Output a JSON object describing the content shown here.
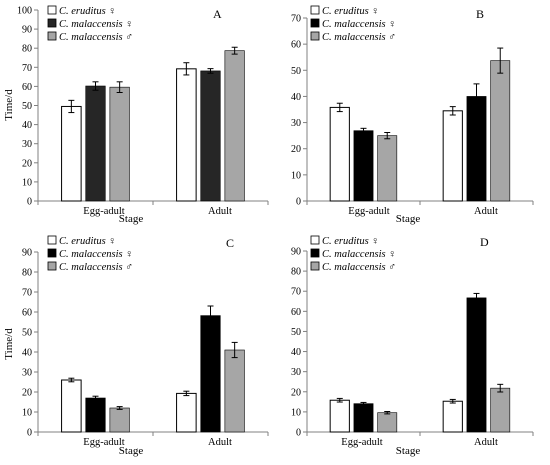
{
  "figure": {
    "panel_label_prefix": "panel",
    "legend_entries": [
      {
        "label": "C. eruditus ♀",
        "marker": "open"
      },
      {
        "label": "C. malaccensis ♀",
        "marker": "black"
      },
      {
        "label": "C. malaccensis ♂",
        "marker": "gray"
      }
    ]
  },
  "colors": {
    "series_fill": [
      "#ffffff",
      "#000000",
      "#a6a6a6"
    ],
    "series_fill_panel_A_malaccensis_female": "#262626",
    "series_stroke": "#000000",
    "axis": "#808080",
    "error_bar": "#000000"
  },
  "chart_data": [
    {
      "type": "bar",
      "panel_label": "A",
      "title": "",
      "xlabel": "Stage",
      "ylabel": "Time/d",
      "categories": [
        "Egg-adult",
        "Adult"
      ],
      "ylim": [
        0,
        100
      ],
      "yticks": [
        0,
        10,
        20,
        30,
        40,
        50,
        60,
        70,
        80,
        90,
        100
      ],
      "grid": false,
      "legend_position": "top-left",
      "series": [
        {
          "name": "C. eruditus ♀",
          "values": [
            49.5,
            69.2
          ],
          "errors": [
            3.2,
            3.2
          ]
        },
        {
          "name": "C. malaccensis ♀",
          "values": [
            60.2,
            68.1
          ],
          "errors": [
            2.2,
            1.2
          ]
        },
        {
          "name": "C. malaccensis ♂",
          "values": [
            59.6,
            78.7
          ],
          "errors": [
            2.8,
            1.8
          ]
        }
      ]
    },
    {
      "type": "bar",
      "panel_label": "B",
      "title": "",
      "xlabel": "Stage",
      "ylabel": "",
      "categories": [
        "Egg-adult",
        "Adult"
      ],
      "ylim": [
        0,
        70
      ],
      "yticks": [
        0,
        10,
        20,
        30,
        40,
        50,
        60,
        70
      ],
      "grid": false,
      "legend_position": "top-left",
      "series": [
        {
          "name": "C. eruditus ♀",
          "values": [
            35.8,
            34.5
          ],
          "errors": [
            1.6,
            1.6
          ]
        },
        {
          "name": "C. malaccensis ♀",
          "values": [
            26.9,
            40.0
          ],
          "errors": [
            0.9,
            4.8
          ]
        },
        {
          "name": "C. malaccensis ♂",
          "values": [
            25.0,
            53.7
          ],
          "errors": [
            1.2,
            4.8
          ]
        }
      ]
    },
    {
      "type": "bar",
      "panel_label": "C",
      "title": "",
      "xlabel": "Stage",
      "ylabel": "Time/d",
      "categories": [
        "Egg-adult",
        "Adult"
      ],
      "ylim": [
        0,
        90
      ],
      "yticks": [
        0,
        10,
        20,
        30,
        40,
        50,
        60,
        70,
        80,
        90
      ],
      "grid": false,
      "legend_position": "top-left",
      "series": [
        {
          "name": "C. eruditus ♀",
          "values": [
            26.0,
            19.3
          ],
          "errors": [
            0.9,
            1.1
          ]
        },
        {
          "name": "C. malaccensis ♀",
          "values": [
            17.0,
            58.2
          ],
          "errors": [
            0.9,
            4.8
          ]
        },
        {
          "name": "C. malaccensis ♂",
          "values": [
            12.0,
            41.0
          ],
          "errors": [
            0.7,
            3.8
          ]
        }
      ]
    },
    {
      "type": "bar",
      "panel_label": "D",
      "title": "",
      "xlabel": "Stage",
      "ylabel": "",
      "categories": [
        "Egg-adult",
        "Adult"
      ],
      "ylim": [
        0,
        90
      ],
      "yticks": [
        0,
        10,
        20,
        30,
        40,
        50,
        60,
        70,
        80,
        90
      ],
      "grid": false,
      "legend_position": "top-left",
      "series": [
        {
          "name": "C. eruditus ♀",
          "values": [
            15.8,
            15.3
          ],
          "errors": [
            0.9,
            0.9
          ]
        },
        {
          "name": "C. malaccensis ♀",
          "values": [
            14.1,
            66.7
          ],
          "errors": [
            0.6,
            2.2
          ]
        },
        {
          "name": "C. malaccensis ♂",
          "values": [
            9.6,
            21.8
          ],
          "errors": [
            0.6,
            1.9
          ]
        }
      ]
    }
  ]
}
